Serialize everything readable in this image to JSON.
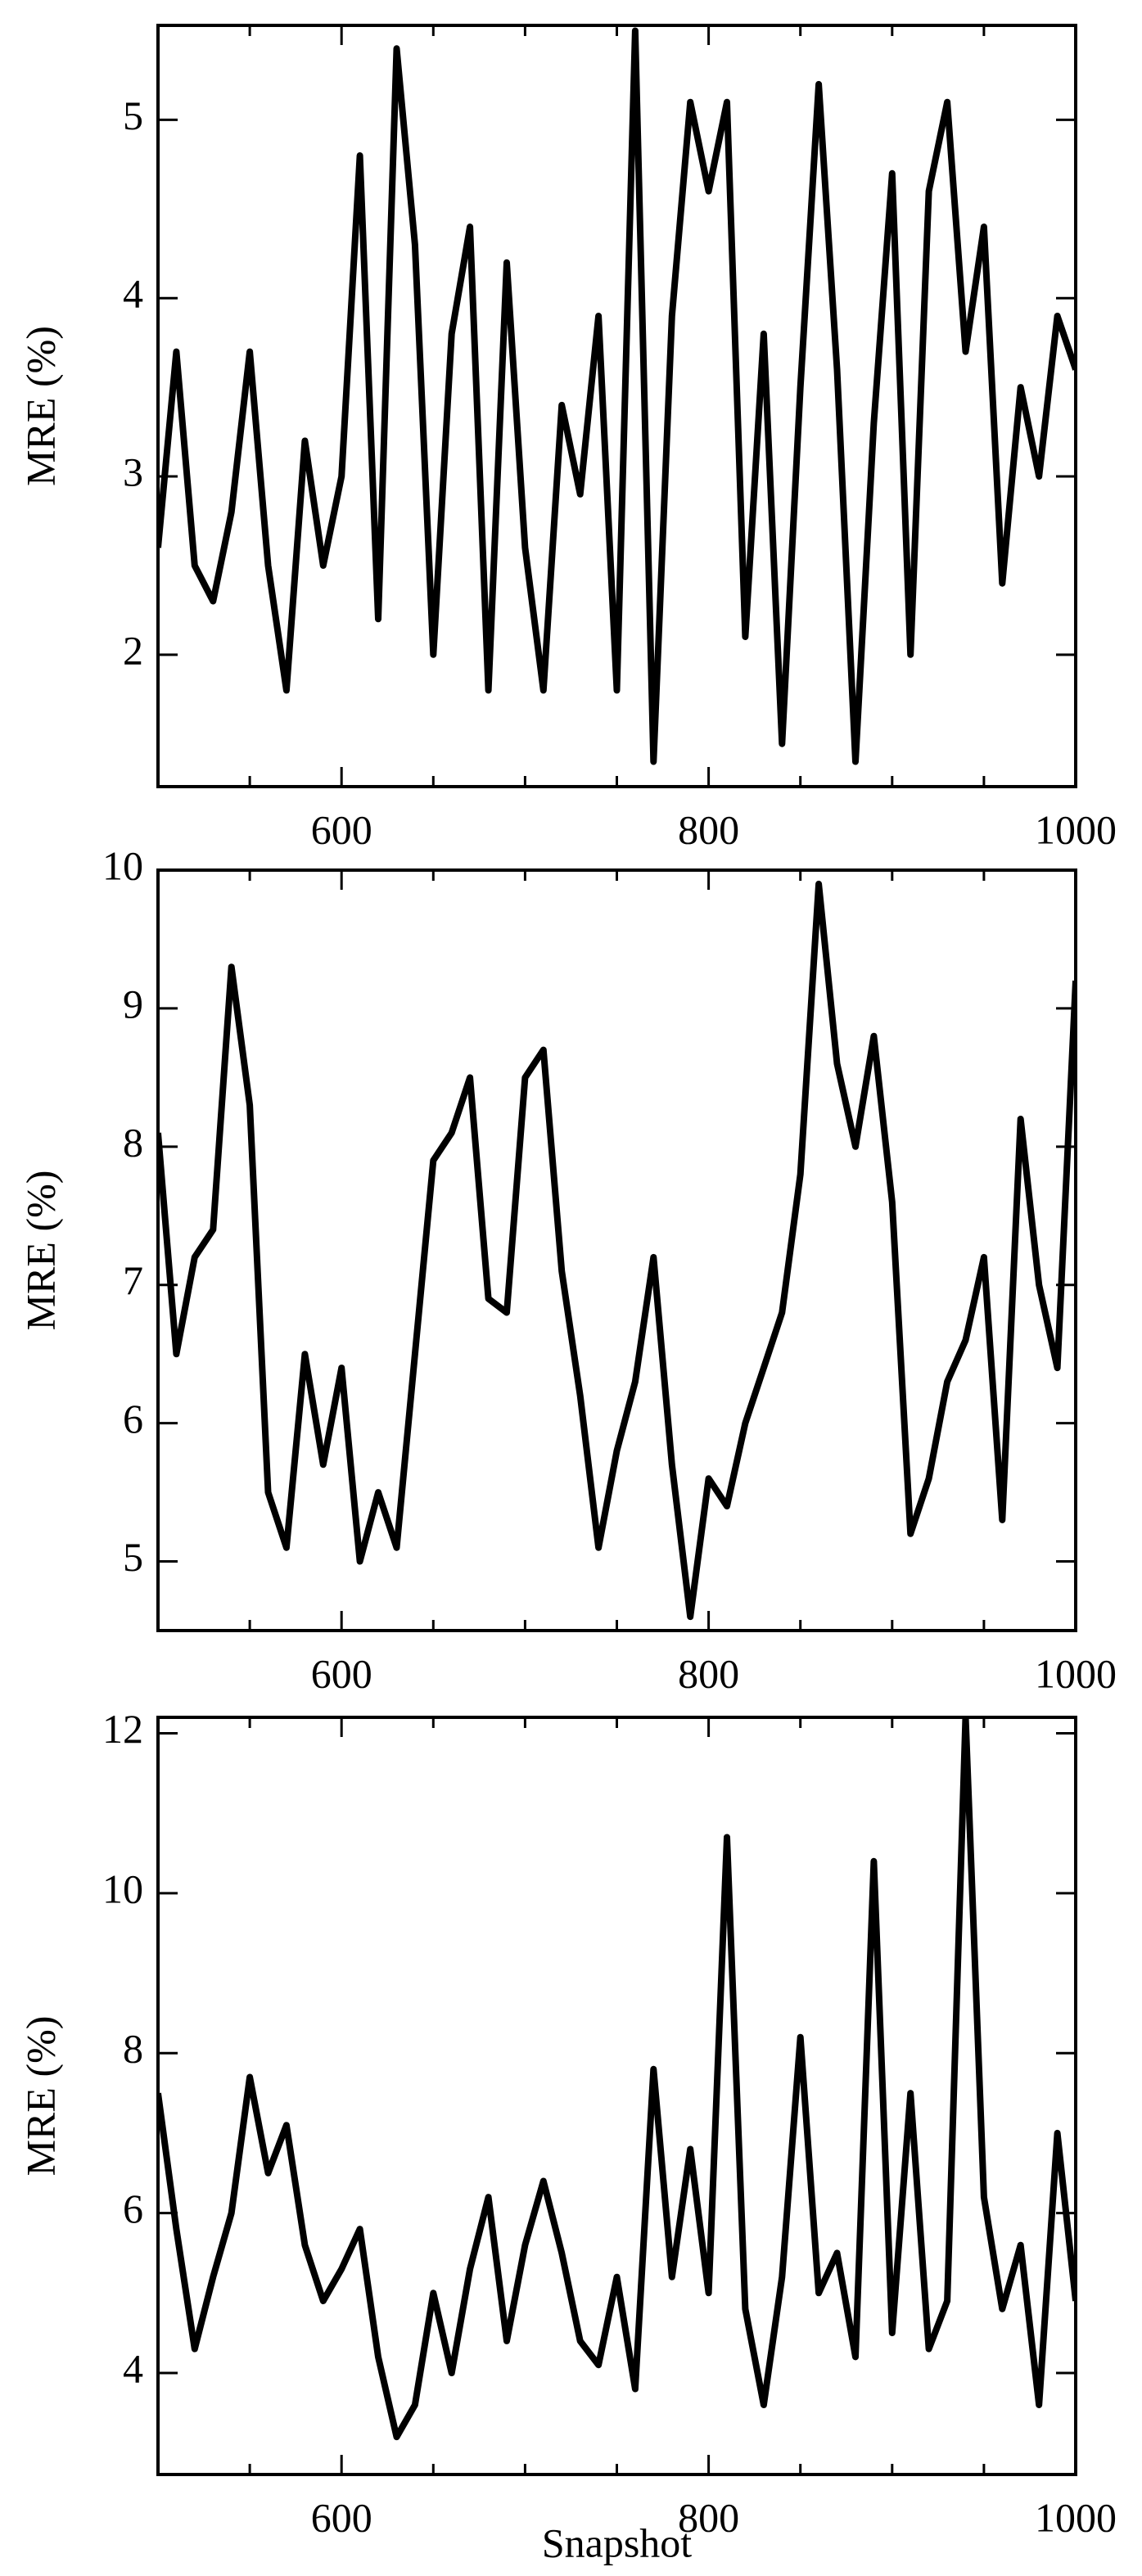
{
  "chart_data": [
    {
      "type": "line",
      "ylabel": "MRE (%)",
      "color": "#000000",
      "x": [
        500,
        510,
        520,
        530,
        540,
        550,
        560,
        570,
        580,
        590,
        600,
        610,
        620,
        630,
        640,
        650,
        660,
        670,
        680,
        690,
        700,
        710,
        720,
        730,
        740,
        750,
        760,
        770,
        780,
        790,
        800,
        810,
        820,
        830,
        840,
        850,
        860,
        870,
        880,
        890,
        900,
        910,
        920,
        930,
        940,
        950,
        960,
        970,
        980,
        990,
        1000
      ],
      "values": [
        2.6,
        3.7,
        2.5,
        2.3,
        2.8,
        3.7,
        2.5,
        1.8,
        3.2,
        2.5,
        3.0,
        4.8,
        2.2,
        5.4,
        4.3,
        2.0,
        3.8,
        4.4,
        1.8,
        4.2,
        2.6,
        1.8,
        3.4,
        2.9,
        3.9,
        1.8,
        5.5,
        1.4,
        3.9,
        5.1,
        4.6,
        5.1,
        2.1,
        3.8,
        1.5,
        3.5,
        5.2,
        3.6,
        1.4,
        3.3,
        4.7,
        2.0,
        4.6,
        5.1,
        3.7,
        4.4,
        2.4,
        3.5,
        3.0,
        3.9,
        3.6
      ],
      "xlim": [
        500,
        1000
      ],
      "xticks": [
        600,
        800,
        1000
      ],
      "xminorticks": [
        550,
        650,
        700,
        750,
        850,
        900,
        950
      ],
      "ylim": [
        1.26,
        5.53
      ],
      "yticks": [
        2,
        3,
        4,
        5
      ]
    },
    {
      "type": "line",
      "ylabel": "MRE (%)",
      "color": "#000000",
      "x": [
        500,
        510,
        520,
        530,
        540,
        550,
        560,
        570,
        580,
        590,
        600,
        610,
        620,
        630,
        640,
        650,
        660,
        670,
        680,
        690,
        700,
        710,
        720,
        730,
        740,
        750,
        760,
        770,
        780,
        790,
        800,
        810,
        820,
        830,
        840,
        850,
        860,
        870,
        880,
        890,
        900,
        910,
        920,
        930,
        940,
        950,
        960,
        970,
        980,
        990,
        1000
      ],
      "values": [
        8.1,
        6.5,
        7.2,
        7.4,
        9.3,
        8.3,
        5.5,
        5.1,
        6.5,
        5.7,
        6.4,
        5.0,
        5.5,
        5.1,
        6.5,
        7.9,
        8.1,
        8.5,
        6.9,
        6.8,
        8.5,
        8.7,
        7.1,
        6.2,
        5.1,
        5.8,
        6.3,
        7.2,
        5.7,
        4.6,
        5.6,
        5.4,
        6.0,
        6.4,
        6.8,
        7.8,
        9.9,
        8.6,
        8.0,
        8.8,
        7.6,
        5.2,
        5.6,
        6.3,
        6.6,
        7.2,
        5.3,
        8.2,
        7.0,
        6.4,
        9.2
      ],
      "xlim": [
        500,
        1000
      ],
      "xticks": [
        600,
        800,
        1000
      ],
      "xminorticks": [
        550,
        650,
        700,
        750,
        850,
        900,
        950
      ],
      "ylim": [
        4.5,
        10
      ],
      "yticks": [
        5,
        6,
        7,
        8,
        9,
        10
      ]
    },
    {
      "type": "line",
      "ylabel": "MRE (%)",
      "xlabel": "Snapshot",
      "color": "#000000",
      "x": [
        500,
        510,
        520,
        530,
        540,
        550,
        560,
        570,
        580,
        590,
        600,
        610,
        620,
        630,
        640,
        650,
        660,
        670,
        680,
        690,
        700,
        710,
        720,
        730,
        740,
        750,
        760,
        770,
        780,
        790,
        800,
        810,
        820,
        830,
        840,
        850,
        860,
        870,
        880,
        890,
        900,
        910,
        920,
        930,
        940,
        950,
        960,
        970,
        980,
        990,
        1000
      ],
      "values": [
        7.5,
        5.8,
        4.3,
        5.2,
        6.0,
        7.7,
        6.5,
        7.1,
        5.6,
        4.9,
        5.3,
        5.8,
        4.2,
        3.2,
        3.6,
        5.0,
        4.0,
        5.3,
        6.2,
        4.4,
        5.6,
        6.4,
        5.5,
        4.4,
        4.1,
        5.2,
        3.8,
        7.8,
        5.2,
        6.8,
        5.0,
        10.7,
        4.8,
        3.6,
        5.2,
        8.2,
        5.0,
        5.5,
        4.2,
        10.4,
        4.5,
        7.5,
        4.3,
        4.9,
        12.2,
        6.2,
        4.8,
        5.6,
        3.6,
        7.0,
        4.9
      ],
      "xlim": [
        500,
        1000
      ],
      "xticks": [
        600,
        800,
        1000
      ],
      "xminorticks": [
        550,
        650,
        700,
        750,
        850,
        900,
        950
      ],
      "ylim": [
        2.73,
        12.2
      ],
      "yticks": [
        4,
        6,
        8,
        10,
        12
      ]
    }
  ]
}
